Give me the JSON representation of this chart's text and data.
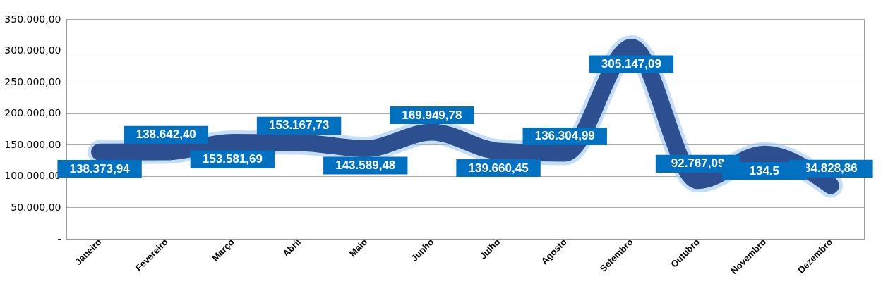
{
  "chart_data": {
    "type": "line",
    "categories": [
      "Janeiro",
      "Fevereiro",
      "Março",
      "Abril",
      "Maio",
      "Junho",
      "Julho",
      "Agosto",
      "Setembro",
      "Outubro",
      "Novembro",
      "Dezembro"
    ],
    "series": [
      {
        "color": "#2e4f8f",
        "values": [
          138373.94,
          138642.4,
          153581.69,
          153167.73,
          143589.48,
          169949.78,
          139660.45,
          136304.99,
          305147.09,
          92767.09,
          135000,
          84828.86
        ],
        "value_labels": [
          "138.373,94",
          "138.642,40",
          "153.581,69",
          "153.167,73",
          "143.589,48",
          "169.949,78",
          "139.660,45",
          "136.304,99",
          "305.147,09",
          "92.767,09",
          null,
          "84.828,86"
        ]
      }
    ],
    "annotations": [
      {
        "text": "134.5",
        "x": "Novembro",
        "y": 135000
      }
    ],
    "ylim": [
      0,
      350000
    ],
    "yticks": [
      {
        "value": 0,
        "label": "-"
      },
      {
        "value": 50000,
        "label": "50.000,00"
      },
      {
        "value": 100000,
        "label": "100.000,00"
      },
      {
        "value": 150000,
        "label": "150.000,00"
      },
      {
        "value": 200000,
        "label": "200.000,00"
      },
      {
        "value": 250000,
        "label": "250.000,00"
      },
      {
        "value": 300000,
        "label": "300.000,00"
      },
      {
        "value": 350000,
        "label": "350.000,00"
      }
    ],
    "grid": "y",
    "marker": "none",
    "line_style": "solid"
  }
}
